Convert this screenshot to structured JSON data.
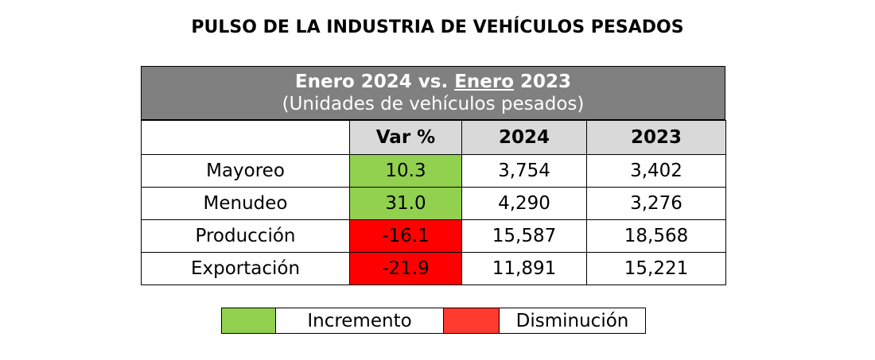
{
  "title": "PULSO DE LA INDUSTRIA DE VEHÍCULOS PESADOS",
  "table": {
    "header": {
      "line1": [
        "Enero 2024 vs.",
        "Enero",
        "2023"
      ],
      "line2": "(Unidades de vehículos pesados)"
    },
    "columns": [
      "Var %",
      "2024",
      "2023"
    ],
    "rows": [
      [
        "Mayoreo",
        "10.3",
        "3,754",
        "3,402"
      ],
      [
        "Menudeo",
        "31.0",
        "4,290",
        "3,276"
      ],
      [
        "Producción",
        "-16.1",
        "15,587",
        "18,568"
      ],
      [
        "Exportación",
        "-21.9",
        "11,891",
        "15,221"
      ]
    ]
  },
  "legend": [
    "Incremento",
    "Disminución"
  ]
}
